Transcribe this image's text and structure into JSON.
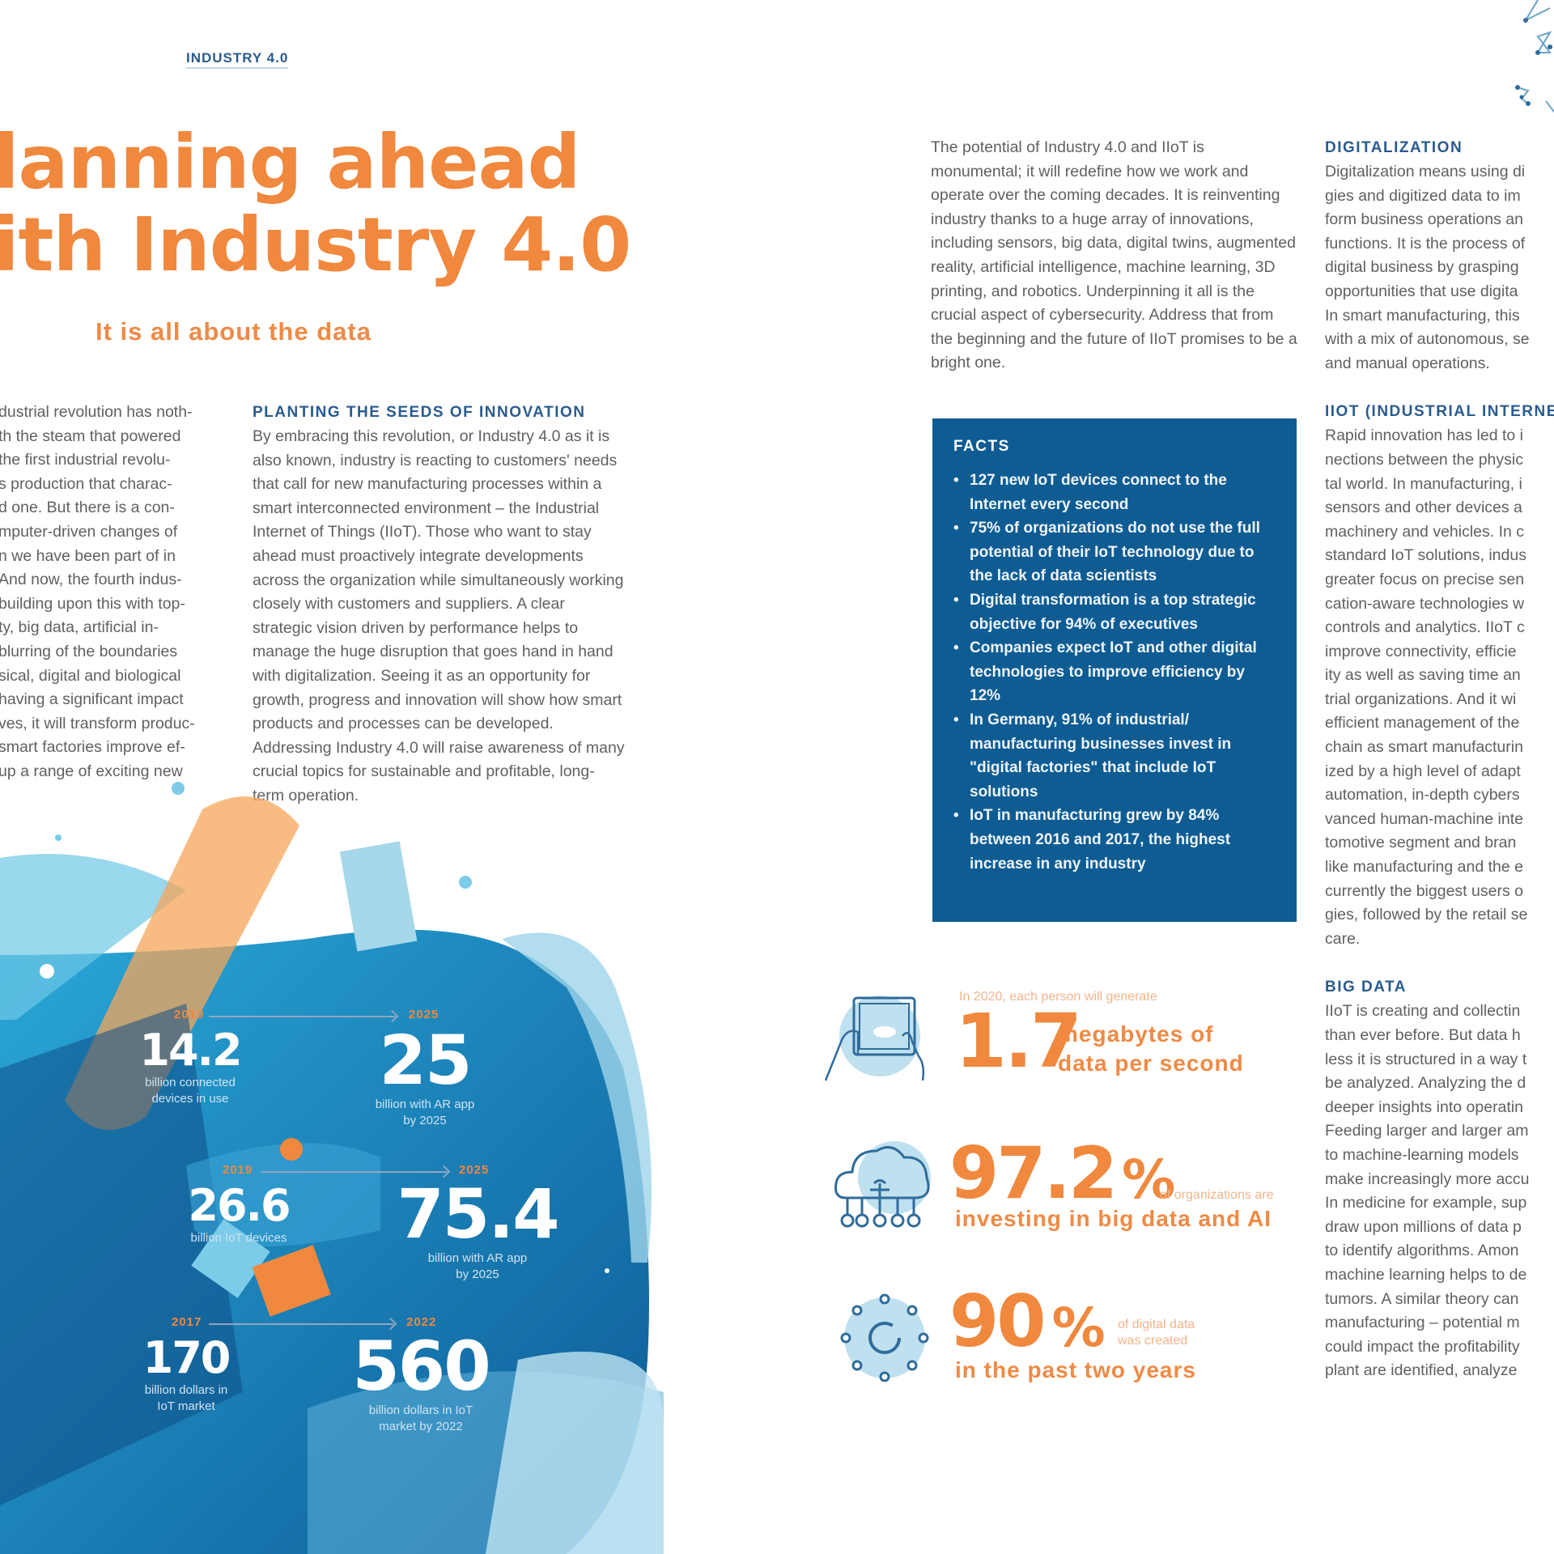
{
  "header": {
    "kicker": "INDUSTRY 4.0",
    "title_line1": "lanning ahead",
    "title_line2": "ith Industry 4.0",
    "subtitle": "It is all about the data"
  },
  "colors": {
    "accent_orange": "#f0883e",
    "heading_blue": "#2a5b8f",
    "facts_box_blue": "#0f5c93",
    "body_gray": "#606060"
  },
  "column1": {
    "lines": [
      "dustrial revolution has noth-",
      "th the steam that powered",
      "the first industrial revolu-",
      "s production that charac-",
      "d one. But there is a con-",
      "mputer-driven changes of",
      "n we have been part of in",
      "And now, the fourth indus-",
      "building upon this with top-",
      "ty, big data, artificial in-",
      "blurring of the boundaries",
      "sical, digital and biological",
      "having a significant impact",
      "ves, it will transform produc-",
      "smart factories improve ef-",
      "up a range of exciting new"
    ]
  },
  "column2": {
    "heading": "PLANTING THE SEEDS OF INNOVATION",
    "body": "By embracing this revolution, or Industry 4.0 as it is also known, industry is reacting to customers' needs that call for new manufacturing processes within a smart interconnected environment – the Industrial Internet of Things (IIoT). Those who want to stay ahead must proactively integrate developments across the organization while simultaneously working closely with customers and suppliers. A clear strategic vision driven by performance helps to manage the huge disruption that goes hand in hand with digitalization. Seeing it as an opportunity for growth, progress and innovation will show how smart products and processes can be developed. Addressing Industry 4.0 will raise awareness of many crucial topics for sustainable and profitable, long-term operation."
  },
  "column3": {
    "body": "The potential of Industry 4.0 and IIoT is monumental; it will redefine how we work and operate over the coming decades. It is reinventing industry thanks to a huge array of innovations, including sensors, big data, digital twins, augmented reality, artificial intelligence, machine learning, 3D printing, and robotics. Underpinning it all is the crucial aspect of cybersecurity. Address that from the beginning and the future of IIoT promises to be a bright one."
  },
  "facts": {
    "heading": "FACTS",
    "items": [
      "127 new IoT devices connect to the Internet every second",
      "75% of organizations do not use the full potential of their IoT technology due to the lack of data scientists",
      "Digital transformation is a top strategic objective for 94% of executives",
      "Companies expect IoT and other digital technologies to improve efficiency by 12%",
      "In Germany, 91% of industrial/ manufacturing businesses invest in \"digital factories\" that include IoT solutions",
      "IoT in manufacturing grew by 84% between 2016 and 2017, the highest increase in any industry"
    ]
  },
  "column4": {
    "sections": [
      {
        "heading": "DIGITALIZATION",
        "lines": [
          "Digitalization means using di",
          "gies and digitized data to im",
          "form business operations an",
          "functions. It is the process of",
          "digital business by grasping",
          "opportunities that use digita",
          "In smart manufacturing, this",
          "with a mix of autonomous, se",
          "and manual operations."
        ]
      },
      {
        "heading": "IIOT (INDUSTRIAL INTERNE",
        "lines": [
          "Rapid innovation has led to i",
          "nections between the physic",
          "tal world. In manufacturing, i",
          "sensors and other devices a",
          "machinery and vehicles. In c",
          "standard IoT solutions, indus",
          "greater focus on precise sen",
          "cation-aware technologies w",
          "controls and analytics. IIoT c",
          "improve connectivity, efficie",
          "ity as well as saving time an",
          "trial organizations. And it wi",
          "efficient management of the",
          "chain as smart manufacturin",
          "ized by a high level of adapt",
          "automation, in-depth cybers",
          "vanced human-machine inte",
          "tomotive segment and bran",
          "like manufacturing and the e",
          "currently the biggest users o",
          "gies, followed by the retail se",
          "care."
        ]
      },
      {
        "heading": "BIG DATA",
        "lines": [
          "IIoT is creating and collectin",
          "than ever before. But data h",
          "less it is structured in a way t",
          "be analyzed. Analyzing the d",
          "deeper insights into operatin",
          "Feeding larger and larger am",
          "to machine-learning models",
          "make increasingly more accu",
          "In medicine for example, sup",
          "draw upon millions of data p",
          "to identify algorithms. Amon",
          "machine learning helps to de",
          "tumors. A similar theory can",
          "manufacturing – potential m",
          "could impact the profitability",
          "plant are identified, analyze"
        ]
      }
    ]
  },
  "stats": [
    {
      "icon": "tablet-hands-icon",
      "pre": "In 2020, each person will generate",
      "value": "1.7",
      "unit": "",
      "label_line1": "megabytes of",
      "label_line2": "data per second"
    },
    {
      "icon": "cloud-network-icon",
      "value": "97.2",
      "unit": "%",
      "side": "of organizations are",
      "label": "investing in big data and AI"
    },
    {
      "icon": "hub-network-icon",
      "value": "90",
      "unit": "%",
      "side_line1": "of digital data",
      "side_line2": "was created",
      "label": "in the past two years"
    }
  ],
  "infographic": {
    "rows": [
      {
        "from_year": "2019",
        "to_year": "2025",
        "from_value": "14.2",
        "from_caption_1": "billion connected",
        "from_caption_2": "devices in use",
        "to_value": "25",
        "to_caption_1": "billion with AR app",
        "to_caption_2": "by 2025"
      },
      {
        "from_year": "2019",
        "to_year": "2025",
        "from_value": "26.6",
        "from_caption_1": "billion IoT devices",
        "from_caption_2": "",
        "to_value": "75.4",
        "to_caption_1": "billion with AR app",
        "to_caption_2": "by 2025"
      },
      {
        "from_year": "2017",
        "to_year": "2022",
        "from_value": "170",
        "from_caption_1": "billion dollars in",
        "from_caption_2": "IoT market",
        "to_value": "560",
        "to_caption_1": "billion dollars in IoT",
        "to_caption_2": "market by 2022"
      }
    ]
  }
}
